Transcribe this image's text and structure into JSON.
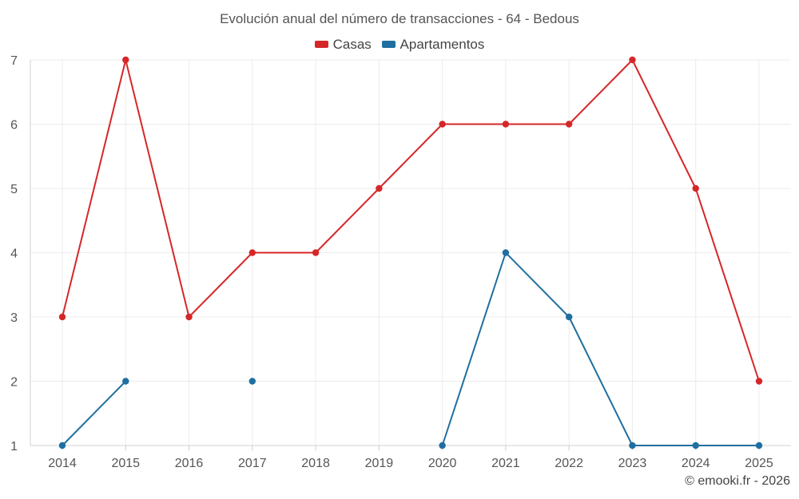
{
  "chart_data": {
    "type": "line",
    "title": "Evolución anual del número de transacciones - 64 - Bedous",
    "categories": [
      "2014",
      "2015",
      "2016",
      "2017",
      "2018",
      "2019",
      "2020",
      "2021",
      "2022",
      "2023",
      "2024",
      "2025"
    ],
    "ylim": [
      1,
      7
    ],
    "yticks": [
      1,
      2,
      3,
      4,
      5,
      6,
      7
    ],
    "grid": true,
    "legend_position": "top-center",
    "series": [
      {
        "name": "Casas",
        "color": "#d62728",
        "values": [
          3,
          7,
          3,
          4,
          4,
          5,
          6,
          6,
          6,
          7,
          5,
          2
        ]
      },
      {
        "name": "Apartamentos",
        "color": "#1f6fa0",
        "values": [
          1,
          2,
          null,
          2,
          null,
          null,
          1,
          4,
          3,
          1,
          1,
          1
        ]
      }
    ]
  },
  "credit": "© emooki.fr - 2026"
}
